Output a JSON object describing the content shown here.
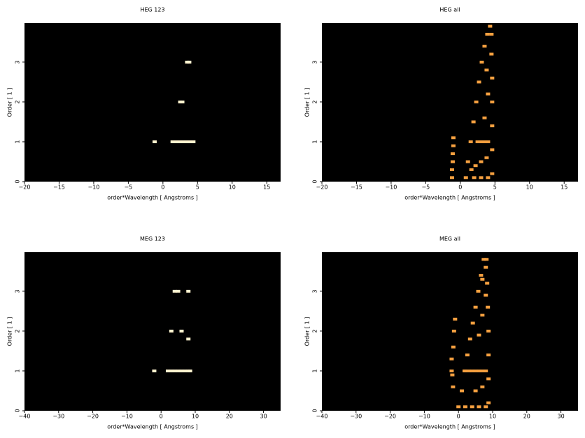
{
  "chart_data": [
    {
      "type": "scatter",
      "title": "HEG 123",
      "xlabel": "order*Wavelength [ Angstroms ]",
      "ylabel": "Order [ 1 ]",
      "xlim": [
        -20,
        17
      ],
      "ylim": [
        0,
        3.98
      ],
      "xticks": [
        {
          "value": -20,
          "label": "−20"
        },
        {
          "value": -15,
          "label": "−15"
        },
        {
          "value": -10,
          "label": "−10"
        },
        {
          "value": -5,
          "label": "−5"
        },
        0,
        5,
        10,
        15
      ],
      "yticks": [
        0,
        1,
        2,
        3
      ],
      "background": "#000000",
      "color": "#fff4d0",
      "x": [
        -1.2,
        1.4,
        1.9,
        2.4,
        2.9,
        3.4,
        3.9,
        4.4,
        2.5,
        2.8,
        3.5,
        3.8
      ],
      "y": [
        1,
        1,
        1,
        1,
        1,
        1,
        1,
        1,
        2,
        2,
        3,
        3
      ]
    },
    {
      "type": "scatter",
      "title": "HEG all",
      "xlabel": "order*Wavelength [ Angstroms ]",
      "ylabel": "Order [ 1 ]",
      "xlim": [
        -20,
        17
      ],
      "ylim": [
        0,
        3.98
      ],
      "xticks": [
        {
          "value": -20,
          "label": "−20"
        },
        {
          "value": -15,
          "label": "−15"
        },
        {
          "value": -10,
          "label": "−10"
        },
        {
          "value": -5,
          "label": "−5"
        },
        0,
        5,
        10,
        15
      ],
      "yticks": [
        0,
        1,
        2,
        3
      ],
      "background": "#000000",
      "color": "#f5a040",
      "x": [
        -1.2,
        -1.2,
        -1.1,
        -1.1,
        -1.0,
        -1.0,
        0.8,
        1.1,
        1.5,
        1.9,
        2.3,
        2.7,
        3.1,
        3.5,
        3.9,
        4.3,
        4.6,
        4.6,
        4.6,
        4.6,
        4.6,
        4.5,
        4.5,
        2.5,
        3.0,
        3.5,
        4.0,
        2.0,
        3.0,
        4.0,
        3.0,
        3.8,
        3.5,
        4.0,
        3.8,
        2.2,
        1.6
      ],
      "y": [
        0.1,
        0.3,
        0.5,
        0.7,
        0.9,
        1.1,
        0.1,
        0.5,
        1.0,
        1.5,
        2.0,
        2.5,
        3.0,
        3.4,
        3.7,
        3.9,
        0.2,
        0.8,
        1.4,
        2.0,
        2.6,
        3.2,
        3.7,
        1.0,
        1.0,
        1.0,
        1.0,
        0.1,
        0.1,
        0.1,
        0.5,
        0.6,
        1.6,
        2.2,
        2.8,
        0.4,
        0.3
      ]
    },
    {
      "type": "scatter",
      "title": "MEG 123",
      "xlabel": "order*Wavelength [ Angstroms ]",
      "ylabel": "Order [ 1 ]",
      "xlim": [
        -40,
        35
      ],
      "ylim": [
        0,
        3.98
      ],
      "xticks": [
        {
          "value": -40,
          "label": "−40"
        },
        {
          "value": -30,
          "label": "−30"
        },
        {
          "value": -20,
          "label": "−20"
        },
        {
          "value": -10,
          "label": "−10"
        },
        0,
        10,
        20,
        30
      ],
      "yticks": [
        0,
        1,
        2,
        3
      ],
      "background": "#000000",
      "color": "#fff4d0",
      "x": [
        -2,
        2,
        3,
        4,
        5,
        6,
        7,
        8,
        8.5,
        3,
        6,
        8,
        4,
        5,
        8
      ],
      "y": [
        1,
        1,
        1,
        1,
        1,
        1,
        1,
        1,
        1,
        2,
        2,
        1.8,
        3,
        3,
        3
      ]
    },
    {
      "type": "scatter",
      "title": "MEG all",
      "xlabel": "order*Wavelength [ Angstroms ]",
      "ylabel": "Order [ 1 ]",
      "xlim": [
        -40,
        35
      ],
      "ylim": [
        0,
        3.98
      ],
      "xticks": [
        {
          "value": -40,
          "label": "−40"
        },
        {
          "value": -30,
          "label": "−30"
        },
        {
          "value": -20,
          "label": "−20"
        },
        {
          "value": -10,
          "label": "−10"
        },
        0,
        10,
        20,
        30
      ],
      "yticks": [
        0,
        1,
        2,
        3
      ],
      "background": "#000000",
      "color": "#f5a040",
      "x": [
        -2,
        -2,
        -1.8,
        -1.6,
        -1.5,
        -1.3,
        -1,
        0,
        1,
        1.8,
        2.6,
        3.4,
        4.2,
        5,
        5.8,
        6.6,
        7.4,
        8.8,
        8.8,
        8.8,
        8.8,
        8.6,
        8.4,
        8.2,
        2,
        3,
        4,
        5,
        6,
        7,
        8,
        2,
        4,
        6,
        8,
        5,
        7,
        6,
        7,
        8,
        7,
        8
      ],
      "y": [
        1,
        1.3,
        0.9,
        0.6,
        1.6,
        2,
        2.3,
        0.1,
        0.5,
        1,
        1.4,
        1.8,
        2.2,
        2.6,
        3,
        3.4,
        3.8,
        0.2,
        0.8,
        1.4,
        2,
        2.6,
        3.2,
        3.8,
        1,
        1,
        1,
        1,
        1,
        1,
        1,
        0.1,
        0.1,
        0.1,
        0.1,
        0.5,
        0.6,
        1.9,
        2.4,
        2.9,
        3.3,
        3.6
      ]
    }
  ]
}
